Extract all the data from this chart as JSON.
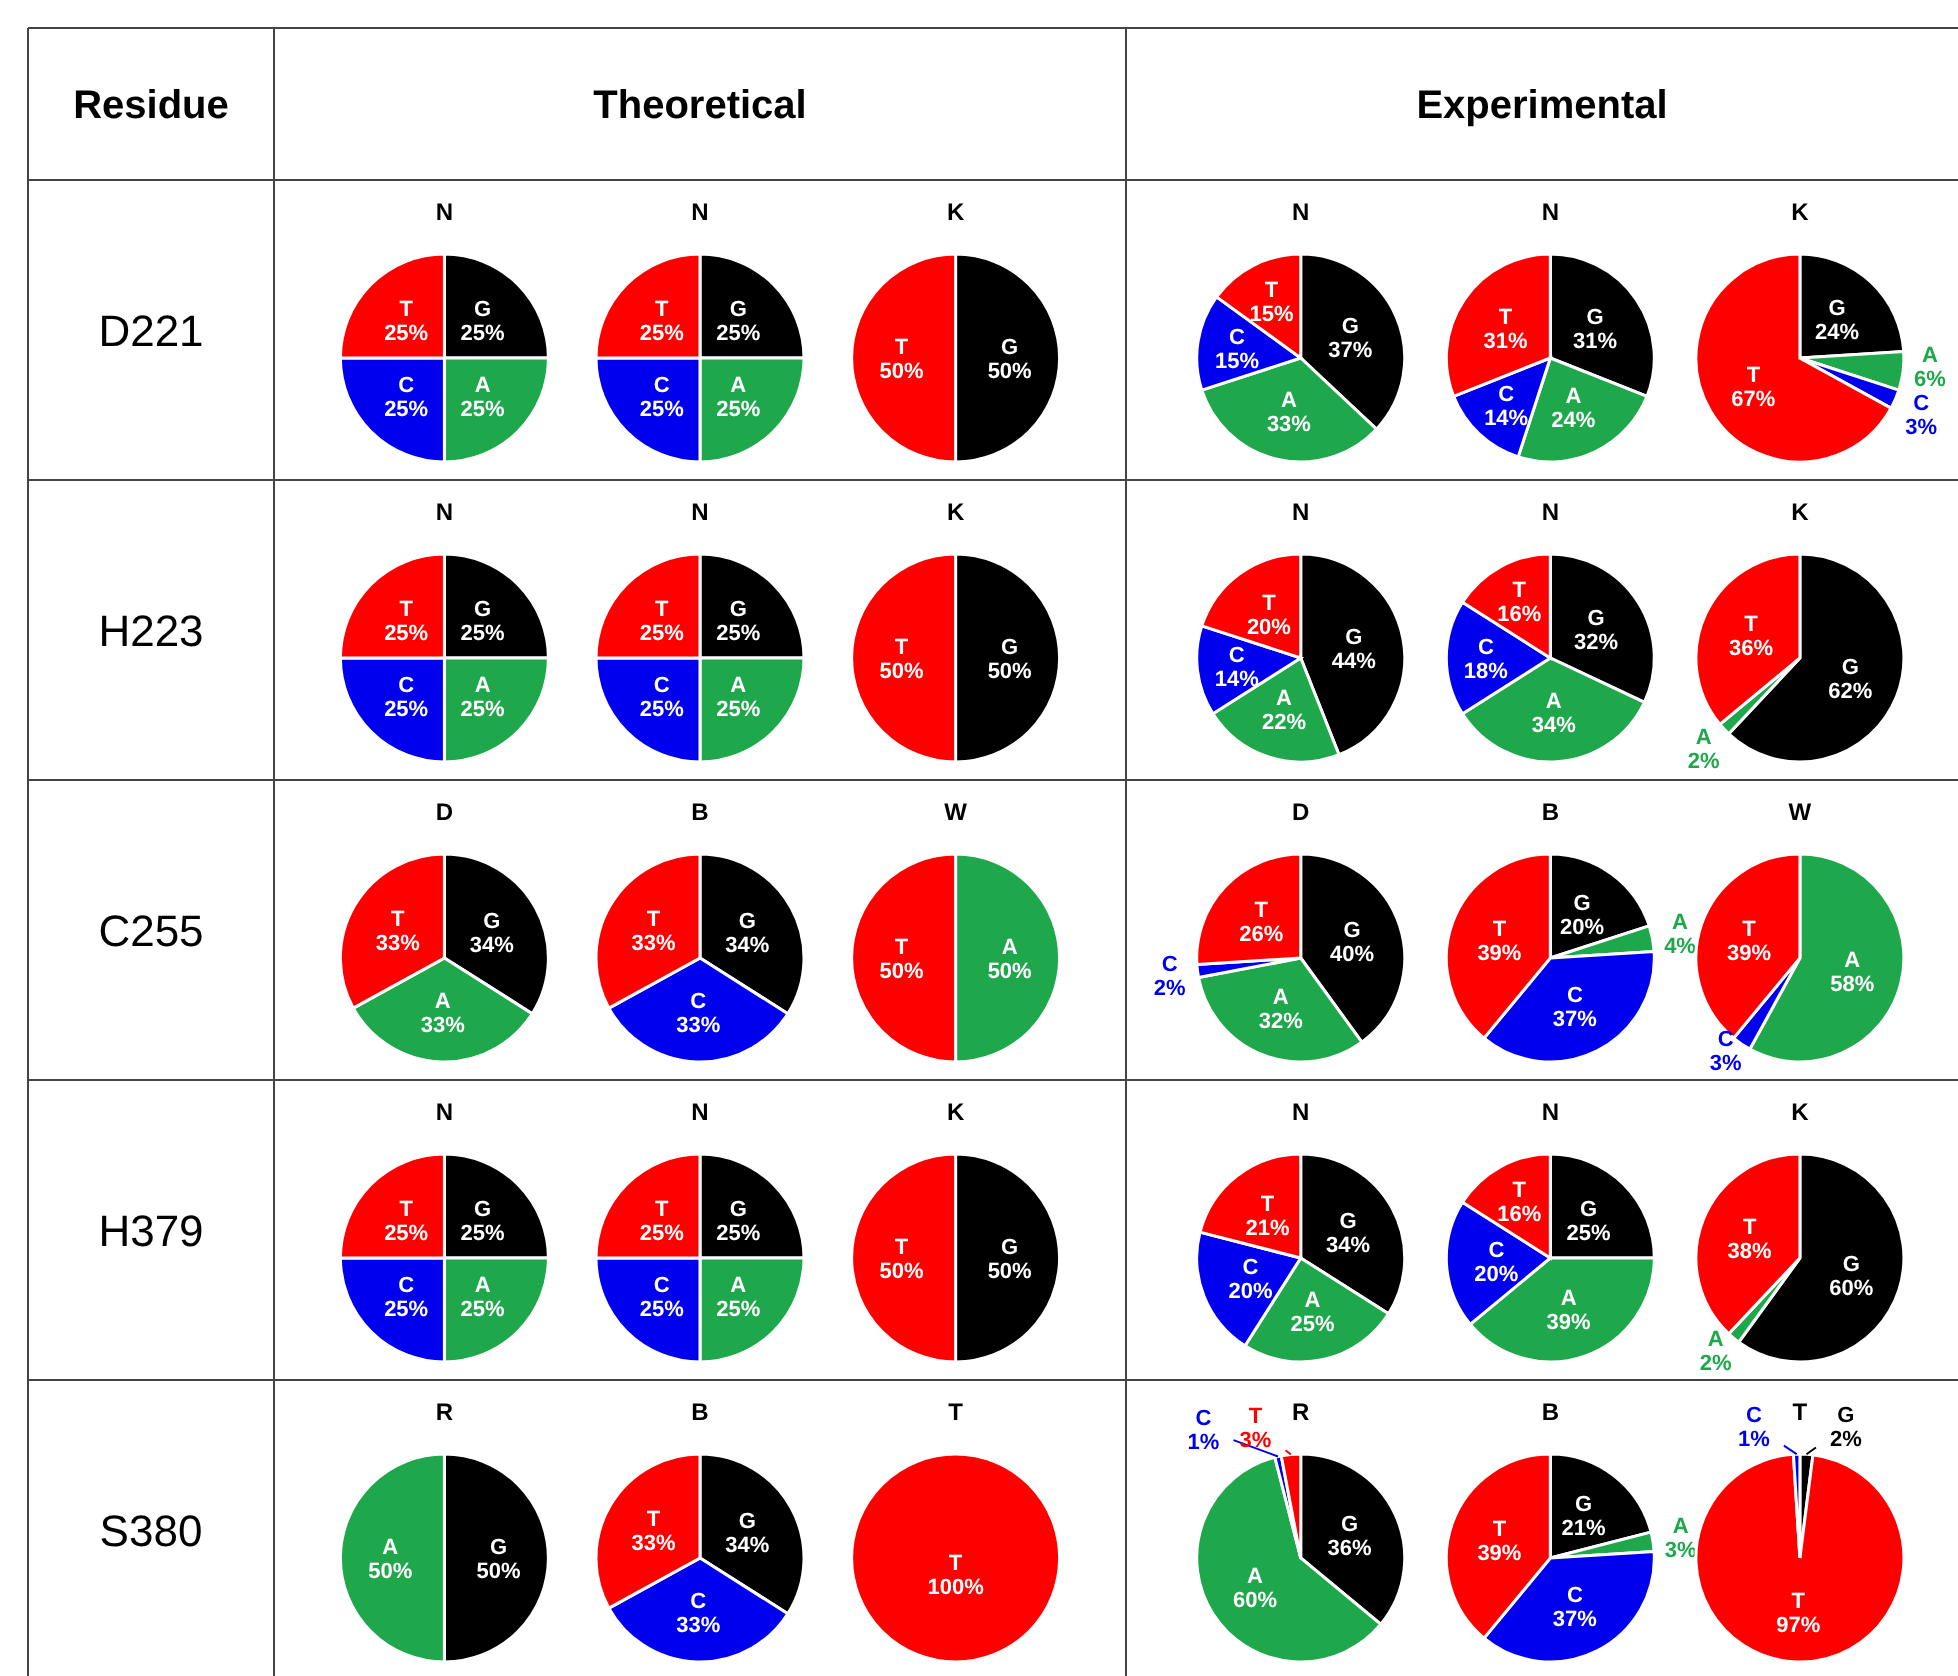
{
  "chart_data": [
    {
      "type": "other",
      "annotations": [
        "Residue",
        "Theoretical",
        "Experimental",
        "D221",
        "H223",
        "C255",
        "H379",
        "S380"
      ]
    },
    {
      "type": "pie",
      "title": "N",
      "categories": [
        "G",
        "A",
        "C",
        "T"
      ],
      "values": [
        25,
        25,
        25,
        25
      ],
      "value_labels": [
        "25%",
        "25%",
        "25%",
        "25%"
      ],
      "colors": [
        "#000000",
        "#1fa84b",
        "#0000ee",
        "#ff0000"
      ]
    },
    {
      "type": "pie",
      "title": "N",
      "categories": [
        "G",
        "A",
        "C",
        "T"
      ],
      "values": [
        25,
        25,
        25,
        25
      ],
      "value_labels": [
        "25%",
        "25%",
        "25%",
        "25%"
      ],
      "colors": [
        "#000000",
        "#1fa84b",
        "#0000ee",
        "#ff0000"
      ]
    },
    {
      "type": "pie",
      "title": "K",
      "categories": [
        "G",
        "T"
      ],
      "values": [
        50,
        50
      ],
      "value_labels": [
        "50%",
        "50%"
      ],
      "colors": [
        "#000000",
        "#ff0000"
      ]
    },
    {
      "type": "pie",
      "title": "N",
      "categories": [
        "G",
        "A",
        "C",
        "T"
      ],
      "values": [
        37,
        33,
        15,
        15
      ],
      "value_labels": [
        "37%",
        "33%",
        "15%",
        "15%"
      ],
      "colors": [
        "#000000",
        "#1fa84b",
        "#0000ee",
        "#ff0000"
      ]
    },
    {
      "type": "pie",
      "title": "N",
      "categories": [
        "G",
        "A",
        "C",
        "T"
      ],
      "values": [
        31,
        24,
        14,
        31
      ],
      "value_labels": [
        "31%",
        "24%",
        "14%",
        "31%"
      ],
      "colors": [
        "#000000",
        "#1fa84b",
        "#0000ee",
        "#ff0000"
      ]
    },
    {
      "type": "pie",
      "title": "K",
      "categories": [
        "G",
        "A",
        "C",
        "T"
      ],
      "values": [
        24,
        6,
        3,
        67
      ],
      "value_labels": [
        "24%",
        "6%",
        "3%",
        "67%"
      ],
      "colors": [
        "#000000",
        "#1fa84b",
        "#0000ee",
        "#ff0000"
      ]
    },
    {
      "type": "pie",
      "title": "N",
      "categories": [
        "G",
        "A",
        "C",
        "T"
      ],
      "values": [
        25,
        25,
        25,
        25
      ],
      "value_labels": [
        "25%",
        "25%",
        "25%",
        "25%"
      ],
      "colors": [
        "#000000",
        "#1fa84b",
        "#0000ee",
        "#ff0000"
      ]
    },
    {
      "type": "pie",
      "title": "N",
      "categories": [
        "G",
        "A",
        "C",
        "T"
      ],
      "values": [
        25,
        25,
        25,
        25
      ],
      "value_labels": [
        "25%",
        "25%",
        "25%",
        "25%"
      ],
      "colors": [
        "#000000",
        "#1fa84b",
        "#0000ee",
        "#ff0000"
      ]
    },
    {
      "type": "pie",
      "title": "K",
      "categories": [
        "G",
        "T"
      ],
      "values": [
        50,
        50
      ],
      "value_labels": [
        "50%",
        "50%"
      ],
      "colors": [
        "#000000",
        "#ff0000"
      ]
    },
    {
      "type": "pie",
      "title": "N",
      "categories": [
        "G",
        "A",
        "C",
        "T"
      ],
      "values": [
        44,
        22,
        14,
        20
      ],
      "value_labels": [
        "44%",
        "22%",
        "14%",
        "20%"
      ],
      "colors": [
        "#000000",
        "#1fa84b",
        "#0000ee",
        "#ff0000"
      ]
    },
    {
      "type": "pie",
      "title": "N",
      "categories": [
        "G",
        "A",
        "C",
        "T"
      ],
      "values": [
        32,
        34,
        18,
        16
      ],
      "value_labels": [
        "32%",
        "34%",
        "18%",
        "16%"
      ],
      "colors": [
        "#000000",
        "#1fa84b",
        "#0000ee",
        "#ff0000"
      ]
    },
    {
      "type": "pie",
      "title": "K",
      "categories": [
        "G",
        "A",
        "T"
      ],
      "values": [
        62,
        2,
        36
      ],
      "value_labels": [
        "62%",
        "2%",
        "36%"
      ],
      "colors": [
        "#000000",
        "#1fa84b",
        "#ff0000"
      ]
    },
    {
      "type": "pie",
      "title": "D",
      "categories": [
        "G",
        "A",
        "T"
      ],
      "values": [
        34,
        33,
        33
      ],
      "value_labels": [
        "34%",
        "33%",
        "33%"
      ],
      "colors": [
        "#000000",
        "#1fa84b",
        "#ff0000"
      ]
    },
    {
      "type": "pie",
      "title": "B",
      "categories": [
        "G",
        "C",
        "T"
      ],
      "values": [
        34,
        33,
        33
      ],
      "value_labels": [
        "34%",
        "33%",
        "33%"
      ],
      "colors": [
        "#000000",
        "#0000ee",
        "#ff0000"
      ]
    },
    {
      "type": "pie",
      "title": "W",
      "categories": [
        "A",
        "T"
      ],
      "values": [
        50,
        50
      ],
      "value_labels": [
        "50%",
        "50%"
      ],
      "colors": [
        "#1fa84b",
        "#ff0000"
      ]
    },
    {
      "type": "pie",
      "title": "D",
      "categories": [
        "G",
        "A",
        "C",
        "T"
      ],
      "values": [
        40,
        32,
        2,
        26
      ],
      "value_labels": [
        "40%",
        "32%",
        "2%",
        "26%"
      ],
      "colors": [
        "#000000",
        "#1fa84b",
        "#0000ee",
        "#ff0000"
      ]
    },
    {
      "type": "pie",
      "title": "B",
      "categories": [
        "G",
        "A",
        "C",
        "T"
      ],
      "values": [
        20,
        4,
        37,
        39
      ],
      "value_labels": [
        "20%",
        "4%",
        "37%",
        "39%"
      ],
      "colors": [
        "#000000",
        "#1fa84b",
        "#0000ee",
        "#ff0000"
      ]
    },
    {
      "type": "pie",
      "title": "W",
      "categories": [
        "A",
        "C",
        "T"
      ],
      "values": [
        58,
        3,
        39
      ],
      "value_labels": [
        "58%",
        "3%",
        "39%"
      ],
      "colors": [
        "#1fa84b",
        "#0000ee",
        "#ff0000"
      ]
    },
    {
      "type": "pie",
      "title": "N",
      "categories": [
        "G",
        "A",
        "C",
        "T"
      ],
      "values": [
        25,
        25,
        25,
        25
      ],
      "value_labels": [
        "25%",
        "25%",
        "25%",
        "25%"
      ],
      "colors": [
        "#000000",
        "#1fa84b",
        "#0000ee",
        "#ff0000"
      ]
    },
    {
      "type": "pie",
      "title": "N",
      "categories": [
        "G",
        "A",
        "C",
        "T"
      ],
      "values": [
        25,
        25,
        25,
        25
      ],
      "value_labels": [
        "25%",
        "25%",
        "25%",
        "25%"
      ],
      "colors": [
        "#000000",
        "#1fa84b",
        "#0000ee",
        "#ff0000"
      ]
    },
    {
      "type": "pie",
      "title": "K",
      "categories": [
        "G",
        "T"
      ],
      "values": [
        50,
        50
      ],
      "value_labels": [
        "50%",
        "50%"
      ],
      "colors": [
        "#000000",
        "#ff0000"
      ]
    },
    {
      "type": "pie",
      "title": "N",
      "categories": [
        "G",
        "A",
        "C",
        "T"
      ],
      "values": [
        34,
        25,
        20,
        21
      ],
      "value_labels": [
        "34%",
        "25%",
        "20%",
        "21%"
      ],
      "colors": [
        "#000000",
        "#1fa84b",
        "#0000ee",
        "#ff0000"
      ]
    },
    {
      "type": "pie",
      "title": "N",
      "categories": [
        "G",
        "A",
        "C",
        "T"
      ],
      "values": [
        25,
        39,
        20,
        16
      ],
      "value_labels": [
        "25%",
        "39%",
        "20%",
        "16%"
      ],
      "colors": [
        "#000000",
        "#1fa84b",
        "#0000ee",
        "#ff0000"
      ]
    },
    {
      "type": "pie",
      "title": "K",
      "categories": [
        "G",
        "A",
        "T"
      ],
      "values": [
        60,
        2,
        38
      ],
      "value_labels": [
        "60%",
        "2%",
        "38%"
      ],
      "colors": [
        "#000000",
        "#1fa84b",
        "#ff0000"
      ]
    },
    {
      "type": "pie",
      "title": "R",
      "categories": [
        "G",
        "A"
      ],
      "values": [
        50,
        50
      ],
      "value_labels": [
        "50%",
        "50%"
      ],
      "colors": [
        "#000000",
        "#1fa84b"
      ]
    },
    {
      "type": "pie",
      "title": "B",
      "categories": [
        "G",
        "C",
        "T"
      ],
      "values": [
        34,
        33,
        33
      ],
      "value_labels": [
        "34%",
        "33%",
        "33%"
      ],
      "colors": [
        "#000000",
        "#0000ee",
        "#ff0000"
      ]
    },
    {
      "type": "pie",
      "title": "T",
      "categories": [
        "T"
      ],
      "values": [
        100
      ],
      "value_labels": [
        "100%"
      ],
      "colors": [
        "#ff0000"
      ]
    },
    {
      "type": "pie",
      "title": "R",
      "categories": [
        "G",
        "A",
        "C",
        "T"
      ],
      "values": [
        36,
        60,
        1,
        3
      ],
      "value_labels": [
        "36%",
        "60%",
        "1%",
        "3%"
      ],
      "colors": [
        "#000000",
        "#1fa84b",
        "#0000ee",
        "#ff0000"
      ]
    },
    {
      "type": "pie",
      "title": "B",
      "categories": [
        "G",
        "A",
        "C",
        "T"
      ],
      "values": [
        21,
        3,
        37,
        39
      ],
      "value_labels": [
        "21%",
        "3%",
        "37%",
        "39%"
      ],
      "colors": [
        "#000000",
        "#1fa84b",
        "#0000ee",
        "#ff0000"
      ]
    },
    {
      "type": "pie",
      "title": "T",
      "categories": [
        "G",
        "T",
        "C"
      ],
      "values": [
        2,
        97,
        1
      ],
      "value_labels": [
        "2%",
        "97%",
        "1%"
      ],
      "colors": [
        "#000000",
        "#ff0000",
        "#0000ee"
      ]
    }
  ]
}
